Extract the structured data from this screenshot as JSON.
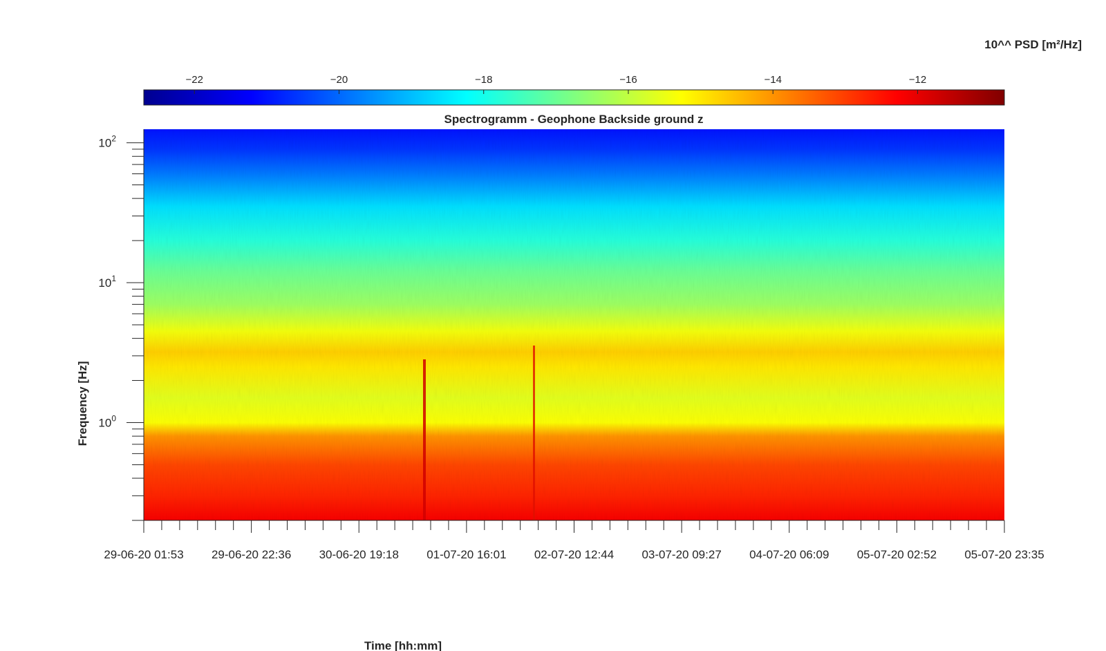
{
  "chart_data": {
    "type": "heatmap",
    "title": "Spectrogramm - Geophone Backside ground z",
    "xlabel": "Time [hh:mm]",
    "ylabel": "Frequency [Hz]",
    "colorbar": {
      "label": "10^^ PSD [m²/Hz]",
      "min": -22.7,
      "max": -10.8,
      "ticks": [
        -22,
        -20,
        -18,
        -16,
        -14,
        -12
      ],
      "colormap": "jet",
      "placement": "top"
    },
    "x_ticks": [
      "29-06-20 01:53",
      "29-06-20 22:36",
      "30-06-20 19:18",
      "01-07-20 16:01",
      "02-07-20 12:44",
      "03-07-20 09:27",
      "04-07-20 06:09",
      "05-07-20 02:52",
      "05-07-20 23:35"
    ],
    "y_scale": "log",
    "ylim": [
      0.2,
      125
    ],
    "y_ticks": [
      {
        "value": 1,
        "base": "10",
        "exp": "0"
      },
      {
        "value": 10,
        "base": "10",
        "exp": "1"
      },
      {
        "value": 100,
        "base": "10",
        "exp": "2"
      }
    ],
    "profile": [
      {
        "freq": 0.2,
        "psd": -12.2
      },
      {
        "freq": 0.3,
        "psd": -12.7
      },
      {
        "freq": 0.5,
        "psd": -13.1
      },
      {
        "freq": 0.8,
        "psd": -14.0
      },
      {
        "freq": 1.0,
        "psd": -15.3
      },
      {
        "freq": 1.5,
        "psd": -15.6
      },
      {
        "freq": 2.5,
        "psd": -15.0
      },
      {
        "freq": 3.2,
        "psd": -14.7
      },
      {
        "freq": 4.5,
        "psd": -15.4
      },
      {
        "freq": 7.0,
        "psd": -16.4
      },
      {
        "freq": 12,
        "psd": -17.0
      },
      {
        "freq": 20,
        "psd": -17.8
      },
      {
        "freq": 35,
        "psd": -18.6
      },
      {
        "freq": 60,
        "psd": -19.8
      },
      {
        "freq": 90,
        "psd": -20.6
      },
      {
        "freq": 125,
        "psd": -21.0
      }
    ],
    "grid": false
  }
}
